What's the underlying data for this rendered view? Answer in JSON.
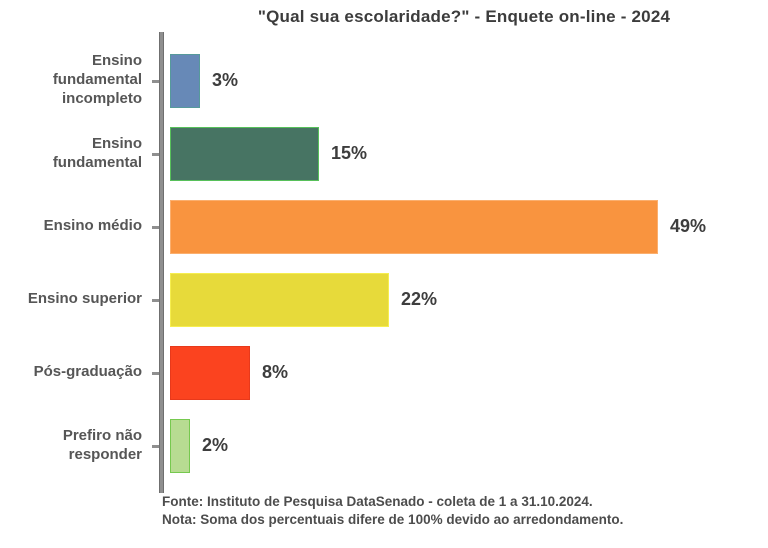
{
  "chart_data": {
    "type": "bar",
    "orientation": "horizontal",
    "title": "\"Qual sua escolaridade?\" - Enquete on-line - 2024",
    "categories": [
      "Ensino fundamental incompleto",
      "Ensino fundamental",
      "Ensino médio",
      "Ensino superior",
      "Pós-graduação",
      "Prefiro não responder"
    ],
    "values": [
      3,
      15,
      49,
      22,
      8,
      2
    ],
    "value_labels": [
      "3%",
      "15%",
      "49%",
      "22%",
      "8%",
      "2%"
    ],
    "colors": [
      "#6789b7",
      "#477463",
      "#f9943f",
      "#e7da3a",
      "#fb431f",
      "#b7dc92"
    ],
    "edge_colors": [
      "#569a9b",
      "#57c05a",
      "#fbaf6e",
      "#f6ee4f",
      "#e8391b",
      "#76c94f"
    ],
    "unit": "%",
    "xlim": [
      0,
      60
    ],
    "axis_color": "#8f8f8f",
    "legend": "none",
    "grid": "off"
  },
  "footer": {
    "source": "Fonte: Instituto de Pesquisa DataSenado - coleta de 1 a 31.10.2024.",
    "note": "Nota: Soma dos percentuais difere de 100% devido ao arredondamento."
  }
}
